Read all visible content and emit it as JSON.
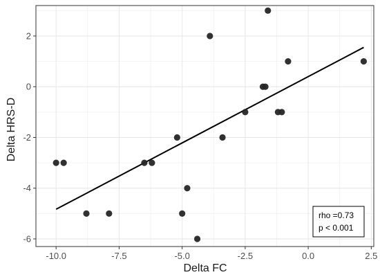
{
  "chart_data": {
    "type": "scatter",
    "title": "",
    "xlabel": "Delta FC",
    "ylabel": "Delta HRS-D",
    "xlim": [
      -10.8,
      2.6
    ],
    "ylim": [
      -6.3,
      3.2
    ],
    "xticks": [
      -10.0,
      -7.5,
      -5.0,
      -2.5,
      0.0,
      2.5
    ],
    "xtick_labels": [
      "-10.0",
      "-7.5",
      "-5.0",
      "-2.5",
      "0.0",
      "2.5"
    ],
    "yticks": [
      -6,
      -4,
      -2,
      0,
      2
    ],
    "ytick_labels": [
      "-6",
      "-4",
      "-2",
      "0",
      "2"
    ],
    "grid": true,
    "theme": "bw",
    "point_color": "#262626",
    "line_color": "#000000",
    "points": [
      {
        "x": -10.0,
        "y": -3
      },
      {
        "x": -9.7,
        "y": -3
      },
      {
        "x": -8.8,
        "y": -5
      },
      {
        "x": -7.9,
        "y": -5
      },
      {
        "x": -6.5,
        "y": -3
      },
      {
        "x": -6.2,
        "y": -3
      },
      {
        "x": -5.2,
        "y": -2
      },
      {
        "x": -5.0,
        "y": -5
      },
      {
        "x": -4.8,
        "y": -4
      },
      {
        "x": -4.4,
        "y": -6
      },
      {
        "x": -3.9,
        "y": 2
      },
      {
        "x": -3.4,
        "y": -2
      },
      {
        "x": -2.5,
        "y": -1
      },
      {
        "x": -1.8,
        "y": 0
      },
      {
        "x": -1.7,
        "y": 0
      },
      {
        "x": -1.6,
        "y": 3
      },
      {
        "x": -1.2,
        "y": -1
      },
      {
        "x": -1.05,
        "y": -1
      },
      {
        "x": -0.8,
        "y": 1
      },
      {
        "x": 2.2,
        "y": 1
      }
    ],
    "fit_line": {
      "x": [
        -10.0,
        2.2
      ],
      "y": [
        -4.83,
        1.55
      ]
    },
    "annotation": {
      "lines": [
        "rho =0.73",
        "p < 0.001"
      ],
      "position": "bottom-right"
    }
  }
}
